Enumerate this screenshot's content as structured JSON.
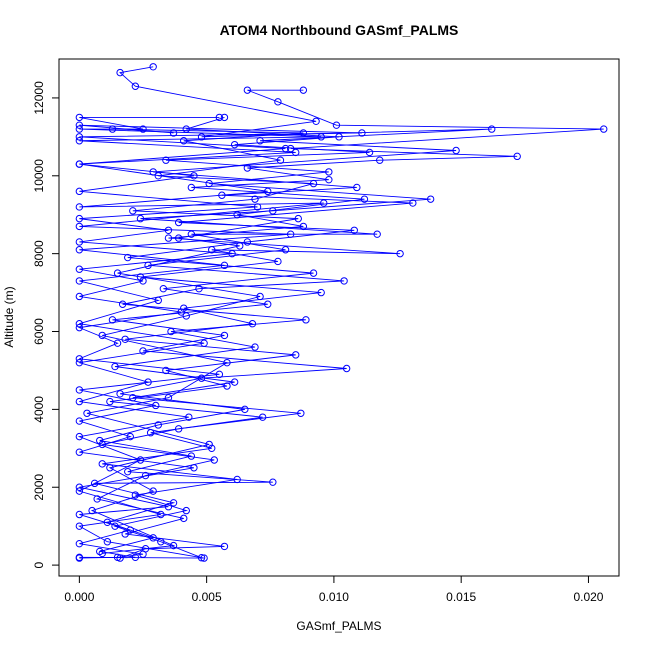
{
  "chart_data": {
    "type": "line",
    "title": "ATOM4 Northbound GASmf_PALMS",
    "xlabel": "GASmf_PALMS",
    "ylabel": "Altitude (m)",
    "xlim": [
      -0.0008,
      0.0212
    ],
    "ylim": [
      -280,
      13000
    ],
    "x_ticks": [
      0.0,
      0.005,
      0.01,
      0.015,
      0.02
    ],
    "x_tick_labels": [
      "0.000",
      "0.005",
      "0.010",
      "0.015",
      "0.020"
    ],
    "y_ticks": [
      0,
      2000,
      4000,
      6000,
      8000,
      10000,
      12000
    ],
    "y_tick_labels": [
      "0",
      "2000",
      "4000",
      "6000",
      "8000",
      "10000",
      "12000"
    ],
    "grid": false,
    "legend": "none",
    "marker": "open-circle",
    "color": "#0000ff",
    "series": [
      {
        "points": [
          [
            0.0,
            180
          ],
          [
            0.0015,
            200
          ],
          [
            0.0025,
            280
          ],
          [
            0.0,
            550
          ],
          [
            0.002,
            900
          ],
          [
            0.0,
            1300
          ],
          [
            0.0035,
            1500
          ],
          [
            0.0,
            2000
          ],
          [
            0.0045,
            2500
          ],
          [
            0.0,
            2900
          ],
          [
            0.002,
            3300
          ],
          [
            0.0,
            3700
          ],
          [
            0.003,
            4100
          ],
          [
            0.0,
            4500
          ],
          [
            0.0055,
            4900
          ],
          [
            0.0,
            5300
          ],
          [
            0.0015,
            5700
          ],
          [
            0.0,
            6100
          ],
          [
            0.004,
            6500
          ],
          [
            0.0,
            6900
          ],
          [
            0.0025,
            7300
          ],
          [
            0.0,
            7600
          ],
          [
            0.006,
            8000
          ],
          [
            0.0,
            8300
          ],
          [
            0.0035,
            8600
          ],
          [
            0.0,
            8900
          ],
          [
            0.007,
            9200
          ],
          [
            0.0,
            9600
          ],
          [
            0.0045,
            10000
          ],
          [
            0.0,
            10300
          ],
          [
            0.0085,
            10600
          ],
          [
            0.0,
            10900
          ],
          [
            0.0095,
            11000
          ],
          [
            0.0,
            11200
          ],
          [
            0.0025,
            11200
          ],
          [
            0.0,
            11500
          ],
          [
            0.0055,
            11500
          ]
        ]
      },
      {
        "points": [
          [
            0.0048,
            190
          ],
          [
            0.0032,
            600
          ],
          [
            0.0014,
            1000
          ],
          [
            0.0042,
            1400
          ],
          [
            0.0022,
            1800
          ],
          [
            0.0062,
            2200
          ],
          [
            0.0009,
            2600
          ],
          [
            0.0052,
            3000
          ],
          [
            0.0028,
            3400
          ],
          [
            0.0072,
            3800
          ],
          [
            0.0012,
            4200
          ],
          [
            0.0058,
            4600
          ],
          [
            0.0034,
            5000
          ],
          [
            0.0085,
            5400
          ],
          [
            0.0018,
            5800
          ],
          [
            0.0068,
            6200
          ],
          [
            0.0041,
            6600
          ],
          [
            0.0095,
            7000
          ],
          [
            0.0024,
            7400
          ],
          [
            0.0078,
            7800
          ],
          [
            0.0052,
            8100
          ],
          [
            0.0126,
            8000
          ],
          [
            0.0035,
            8400
          ],
          [
            0.0088,
            8700
          ],
          [
            0.0062,
            9000
          ],
          [
            0.0112,
            9400
          ],
          [
            0.0044,
            9700
          ],
          [
            0.0098,
            9900
          ],
          [
            0.0066,
            10200
          ],
          [
            0.0118,
            10400
          ],
          [
            0.0172,
            10500
          ],
          [
            0.0083,
            10700
          ],
          [
            0.0206,
            11200
          ],
          [
            0.0101,
            11300
          ],
          [
            0.0078,
            11900
          ],
          [
            0.0066,
            12200
          ],
          [
            0.0088,
            12200
          ]
        ]
      },
      {
        "points": [
          [
            0.0022,
            200
          ],
          [
            0.0008,
            350
          ],
          [
            0.0029,
            700
          ],
          [
            0.0011,
            1100
          ],
          [
            0.0037,
            1600
          ],
          [
            0.0006,
            2100
          ],
          [
            0.0076,
            2130
          ],
          [
            0.0019,
            2400
          ],
          [
            0.0044,
            2800
          ],
          [
            0.0008,
            3200
          ],
          [
            0.0031,
            3600
          ],
          [
            0.0065,
            4000
          ],
          [
            0.0016,
            4400
          ],
          [
            0.0048,
            4800
          ],
          [
            0.0105,
            5050
          ],
          [
            0.0025,
            5500
          ],
          [
            0.0057,
            5900
          ],
          [
            0.0013,
            6300
          ],
          [
            0.0074,
            6700
          ],
          [
            0.0033,
            7100
          ],
          [
            0.0092,
            7500
          ],
          [
            0.0019,
            7900
          ],
          [
            0.0066,
            8300
          ],
          [
            0.0108,
            8600
          ],
          [
            0.0039,
            8800
          ],
          [
            0.0131,
            9300
          ],
          [
            0.0056,
            9500
          ],
          [
            0.0109,
            9700
          ],
          [
            0.0029,
            10100
          ],
          [
            0.0148,
            10650
          ],
          [
            0.0071,
            10900
          ],
          [
            0.0162,
            11200
          ],
          [
            0.0048,
            11000
          ],
          [
            0.0093,
            11400
          ],
          [
            0.0022,
            12300
          ],
          [
            0.0016,
            12650
          ],
          [
            0.0029,
            12800
          ]
        ]
      },
      {
        "points": [
          [
            0.0016,
            180
          ],
          [
            0.0026,
            420
          ],
          [
            0.0057,
            480
          ],
          [
            0.0018,
            800
          ],
          [
            0.0041,
            1200
          ],
          [
            0.0007,
            1700
          ],
          [
            0.0026,
            2300
          ],
          [
            0.0053,
            2700
          ],
          [
            0.0009,
            3100
          ],
          [
            0.0039,
            3500
          ],
          [
            0.0087,
            3900
          ],
          [
            0.0021,
            4300
          ],
          [
            0.0061,
            4700
          ],
          [
            0.0014,
            5100
          ],
          [
            0.0069,
            5600
          ],
          [
            0.0036,
            6000
          ],
          [
            0.0089,
            6300
          ],
          [
            0.0017,
            6700
          ],
          [
            0.0047,
            7100
          ],
          [
            0.0104,
            7300
          ],
          [
            0.0027,
            7700
          ],
          [
            0.0081,
            8100
          ],
          [
            0.0044,
            8500
          ],
          [
            0.0117,
            8500
          ],
          [
            0.0024,
            8900
          ],
          [
            0.0076,
            9100
          ],
          [
            0.0138,
            9400
          ],
          [
            0.0051,
            9800
          ],
          [
            0.0098,
            10100
          ],
          [
            0.0034,
            10400
          ],
          [
            0.0114,
            10600
          ],
          [
            0.0061,
            10800
          ],
          [
            0.0102,
            11000
          ],
          [
            0.0042,
            11200
          ],
          [
            0.0057,
            11500
          ]
        ]
      },
      {
        "points": [
          [
            0.0,
            200
          ],
          [
            0.0049,
            180
          ],
          [
            0.0011,
            600
          ],
          [
            0.0,
            1000
          ],
          [
            0.0032,
            1300
          ],
          [
            0.0,
            1900
          ],
          [
            0.0024,
            2700
          ],
          [
            0.0,
            3300
          ],
          [
            0.0043,
            3800
          ],
          [
            0.0,
            4200
          ],
          [
            0.0027,
            4700
          ],
          [
            0.0,
            5200
          ],
          [
            0.0049,
            5700
          ],
          [
            0.0,
            6200
          ],
          [
            0.0031,
            6800
          ],
          [
            0.0,
            7300
          ],
          [
            0.0057,
            7700
          ],
          [
            0.0,
            8100
          ],
          [
            0.0083,
            8500
          ],
          [
            0.0,
            8700
          ],
          [
            0.0096,
            9300
          ],
          [
            0.0,
            9200
          ],
          [
            0.0074,
            9600
          ],
          [
            0.0,
            10300
          ],
          [
            0.0081,
            10700
          ],
          [
            0.0,
            11000
          ],
          [
            0.0111,
            11100
          ],
          [
            0.0,
            11300
          ],
          [
            0.0037,
            11100
          ]
        ]
      },
      {
        "points": [
          [
            0.0009,
            300
          ],
          [
            0.0037,
            500
          ],
          [
            0.0005,
            1400
          ],
          [
            0.0029,
            1900
          ],
          [
            0.0012,
            2500
          ],
          [
            0.0051,
            3100
          ],
          [
            0.0003,
            3900
          ],
          [
            0.0035,
            4300
          ],
          [
            0.0058,
            5200
          ],
          [
            0.0009,
            5900
          ],
          [
            0.0042,
            6400
          ],
          [
            0.0071,
            6900
          ],
          [
            0.0015,
            7500
          ],
          [
            0.0063,
            8200
          ],
          [
            0.0039,
            8400
          ],
          [
            0.0086,
            8900
          ],
          [
            0.0021,
            9100
          ],
          [
            0.0069,
            9400
          ],
          [
            0.0092,
            9800
          ],
          [
            0.0031,
            10000
          ],
          [
            0.0079,
            10400
          ],
          [
            0.0041,
            10900
          ],
          [
            0.0088,
            11100
          ],
          [
            0.0013,
            11200
          ]
        ]
      }
    ]
  }
}
